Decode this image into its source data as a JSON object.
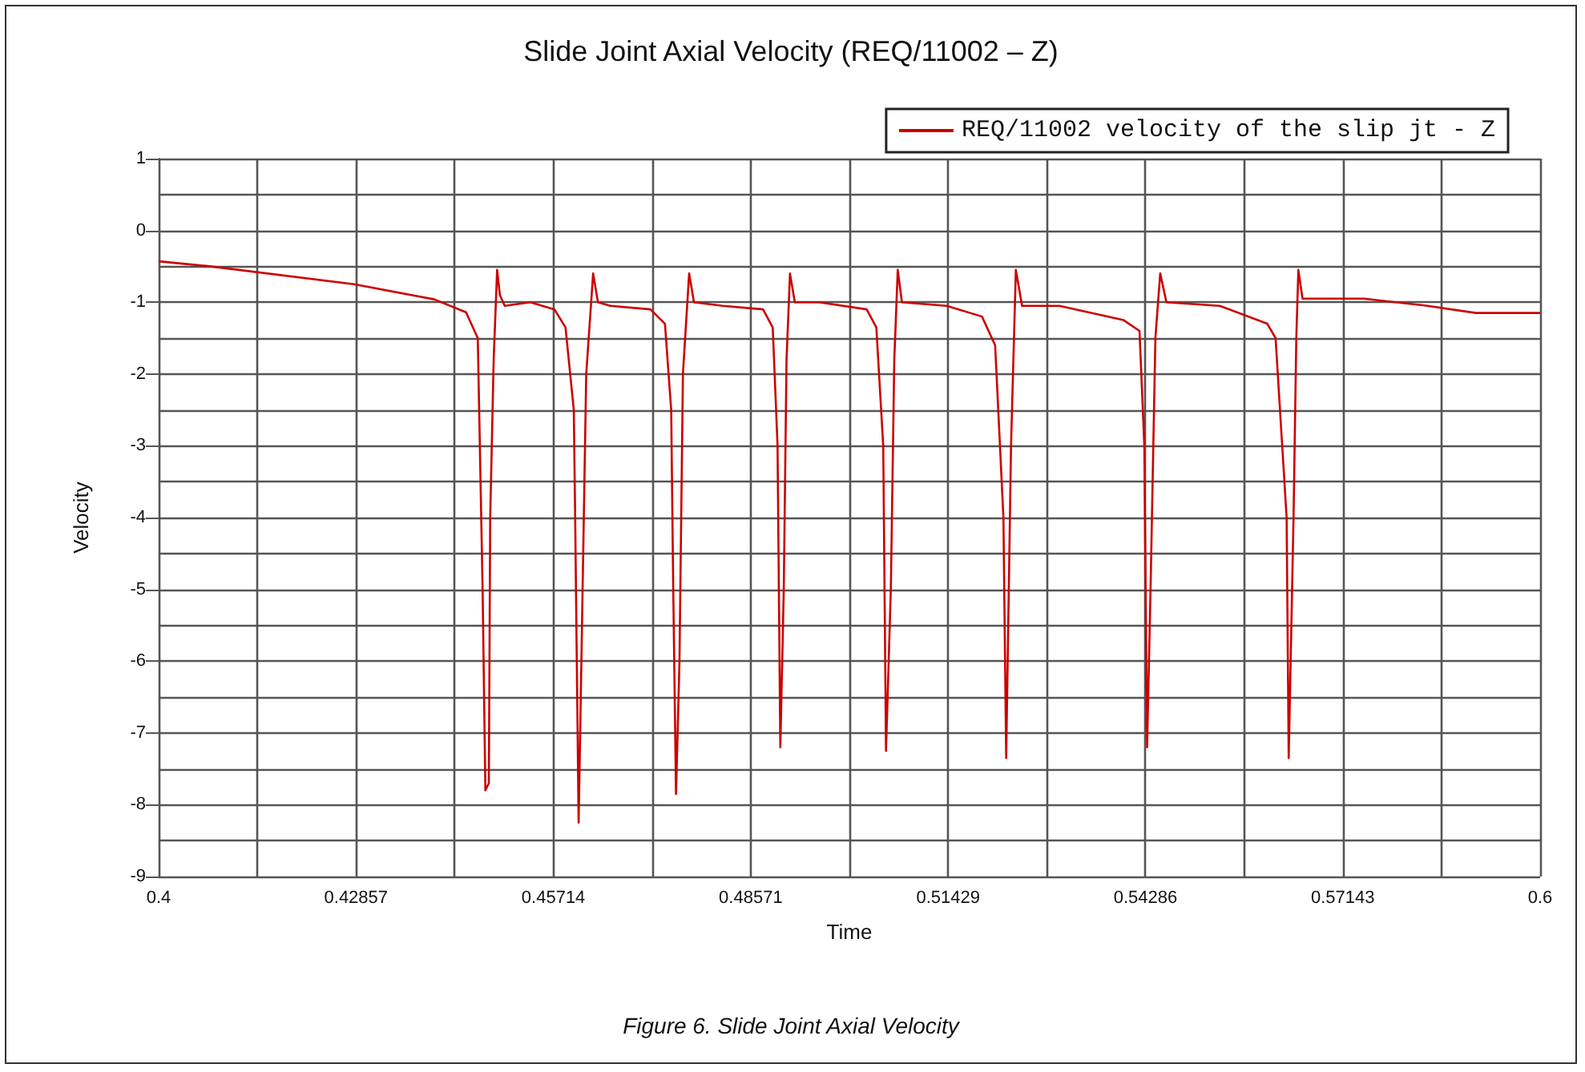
{
  "chart_data": {
    "type": "line",
    "title": "Slide Joint Axial Velocity (REQ/11002 – Z)",
    "xlabel": "Time",
    "ylabel": "Velocity",
    "annotations": [
      "Figure 6. Slide Joint Axial Velocity"
    ],
    "xlim": [
      0.4,
      0.6
    ],
    "xticks": [
      0.4,
      0.42857,
      0.45714,
      0.48571,
      0.51429,
      0.54286,
      0.57143,
      0.6
    ],
    "ylim": [
      -9,
      1
    ],
    "yticks": [
      -9,
      -8,
      -7,
      -6,
      -5,
      -4,
      -3,
      -2,
      -1,
      0,
      1
    ],
    "grid": true,
    "legend": "top right",
    "marker": "none",
    "line_style": "solid",
    "series": [
      {
        "name": "REQ/11002 velocity of the slip jt - Z",
        "color": "#cc0000",
        "x": [
          0.4,
          0.4074,
          0.4283,
          0.4399,
          0.4445,
          0.4462,
          0.4464,
          0.4469,
          0.4473,
          0.4478,
          0.448,
          0.4485,
          0.449,
          0.4494,
          0.4501,
          0.4538,
          0.4573,
          0.4589,
          0.4601,
          0.4603,
          0.4608,
          0.4612,
          0.4619,
          0.4629,
          0.4636,
          0.4654,
          0.4712,
          0.4733,
          0.4742,
          0.4745,
          0.4749,
          0.4754,
          0.4759,
          0.4768,
          0.4775,
          0.4817,
          0.4875,
          0.4889,
          0.4896,
          0.49,
          0.4905,
          0.4909,
          0.4914,
          0.4921,
          0.4956,
          0.5025,
          0.5039,
          0.5049,
          0.5053,
          0.506,
          0.5065,
          0.507,
          0.5076,
          0.5141,
          0.5192,
          0.5211,
          0.5223,
          0.5227,
          0.5234,
          0.5241,
          0.525,
          0.5304,
          0.5397,
          0.542,
          0.5427,
          0.5431,
          0.5436,
          0.5443,
          0.545,
          0.5459,
          0.5536,
          0.5605,
          0.5617,
          0.5633,
          0.5636,
          0.5643,
          0.5647,
          0.565,
          0.5656,
          0.5745,
          0.5837,
          0.5907,
          0.6
        ],
        "values": [
          -0.43,
          -0.5,
          -0.75,
          -0.96,
          -1.14,
          -1.5,
          -2.5,
          -5,
          -7.8,
          -7.7,
          -4,
          -1.8,
          -0.55,
          -0.9,
          -1.05,
          -1,
          -1.1,
          -1.35,
          -2.5,
          -4,
          -8.25,
          -6,
          -2,
          -0.6,
          -1,
          -1.05,
          -1.1,
          -1.3,
          -2.5,
          -5,
          -7.85,
          -6,
          -2,
          -0.6,
          -1,
          -1.05,
          -1.1,
          -1.35,
          -3,
          -7.2,
          -5,
          -1.8,
          -0.6,
          -1,
          -1,
          -1.1,
          -1.35,
          -3,
          -7.25,
          -5,
          -1.8,
          -0.55,
          -1,
          -1.05,
          -1.2,
          -1.6,
          -4,
          -7.35,
          -3,
          -0.55,
          -1.05,
          -1.05,
          -1.25,
          -1.4,
          -3,
          -7.2,
          -5,
          -1.5,
          -0.6,
          -1,
          -1.05,
          -1.3,
          -1.5,
          -4,
          -7.35,
          -4,
          -1.5,
          -0.55,
          -0.95,
          -0.95,
          -1.05,
          -1.15,
          -1.15
        ]
      }
    ]
  }
}
